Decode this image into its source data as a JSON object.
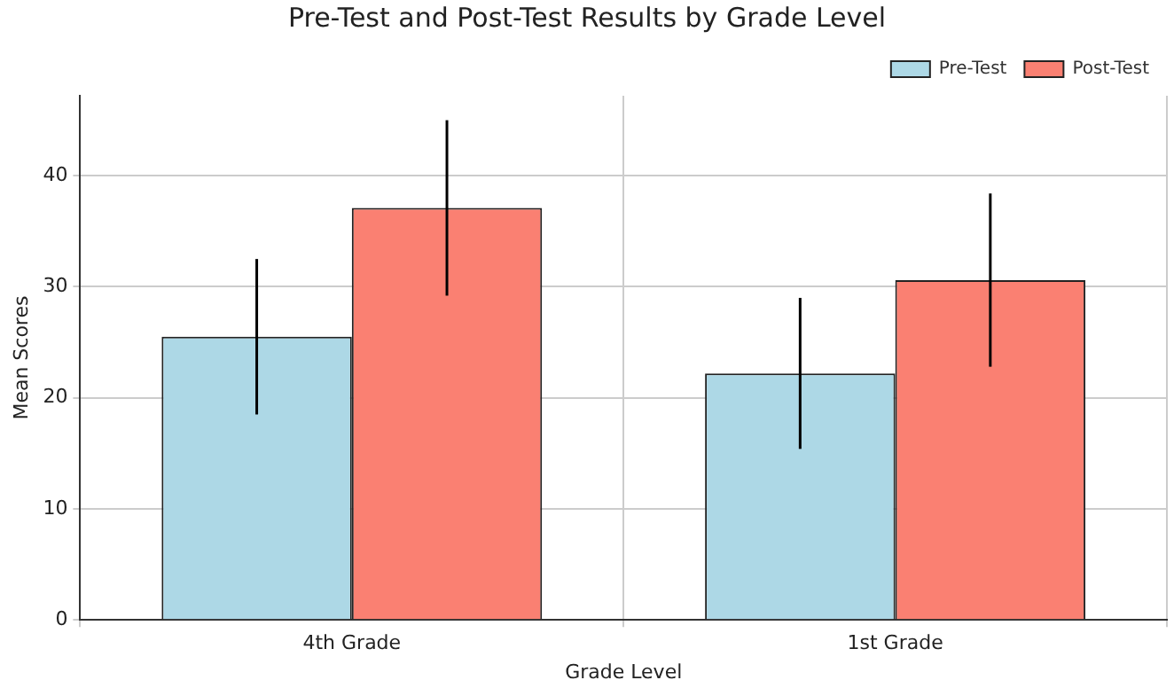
{
  "chart_data": {
    "type": "bar",
    "title": "Pre-Test and Post-Test Results by Grade Level",
    "xlabel": "Grade Level",
    "ylabel": "Mean Scores",
    "categories": [
      "4th Grade",
      "1st Grade"
    ],
    "series": [
      {
        "name": "Pre-Test",
        "color": "#add8e6",
        "values": [
          25.5,
          22.2
        ],
        "errors": [
          7,
          6.8
        ]
      },
      {
        "name": "Post-Test",
        "color": "#fa8072",
        "values": [
          37.1,
          30.6
        ],
        "errors": [
          7.9,
          7.8
        ]
      }
    ],
    "ylim": [
      0,
      47.2
    ],
    "yticks": [
      0,
      10,
      20,
      30,
      40
    ],
    "grid": true,
    "legend": "top right"
  }
}
